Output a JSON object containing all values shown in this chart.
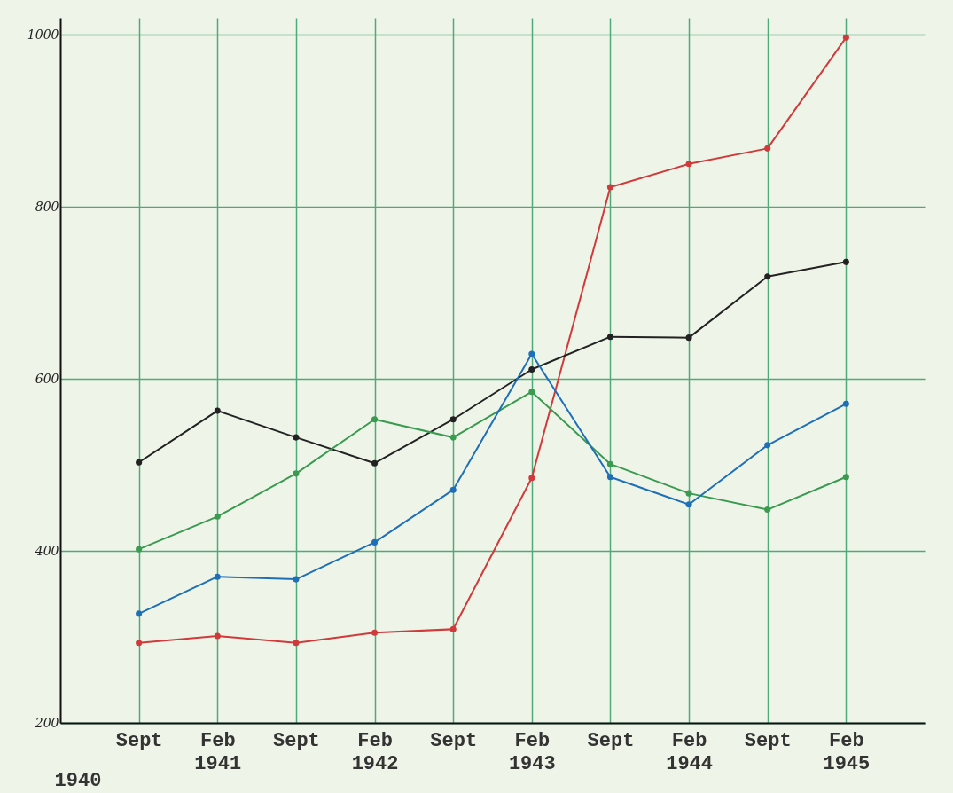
{
  "chart_data": {
    "type": "line",
    "categories": [
      "Sept",
      "Feb 1941",
      "Sept",
      "Feb 1942",
      "Sept",
      "Feb 1943",
      "Sept",
      "Feb 1944",
      "Sept",
      "Feb 1945"
    ],
    "series": [
      {
        "color": "#d03a3a",
        "values": [
          293,
          301,
          293,
          305,
          309,
          485,
          823,
          850,
          868,
          997
        ]
      },
      {
        "color": "#222222",
        "values": [
          503,
          563,
          532,
          502,
          553,
          611,
          649,
          648,
          719,
          736
        ]
      },
      {
        "color": "#3a9a50",
        "values": [
          402,
          440,
          490,
          553,
          532,
          585,
          501,
          467,
          448,
          486
        ]
      },
      {
        "color": "#1f6fb8",
        "values": [
          327,
          370,
          367,
          410,
          471,
          629,
          486,
          454,
          523,
          571
        ]
      }
    ],
    "ylim": [
      200,
      1020
    ],
    "yticks": [
      200,
      400,
      600,
      800,
      1000
    ],
    "grid": true,
    "marker": "circle",
    "line_style": "solid",
    "annotations": [
      "1940"
    ]
  }
}
